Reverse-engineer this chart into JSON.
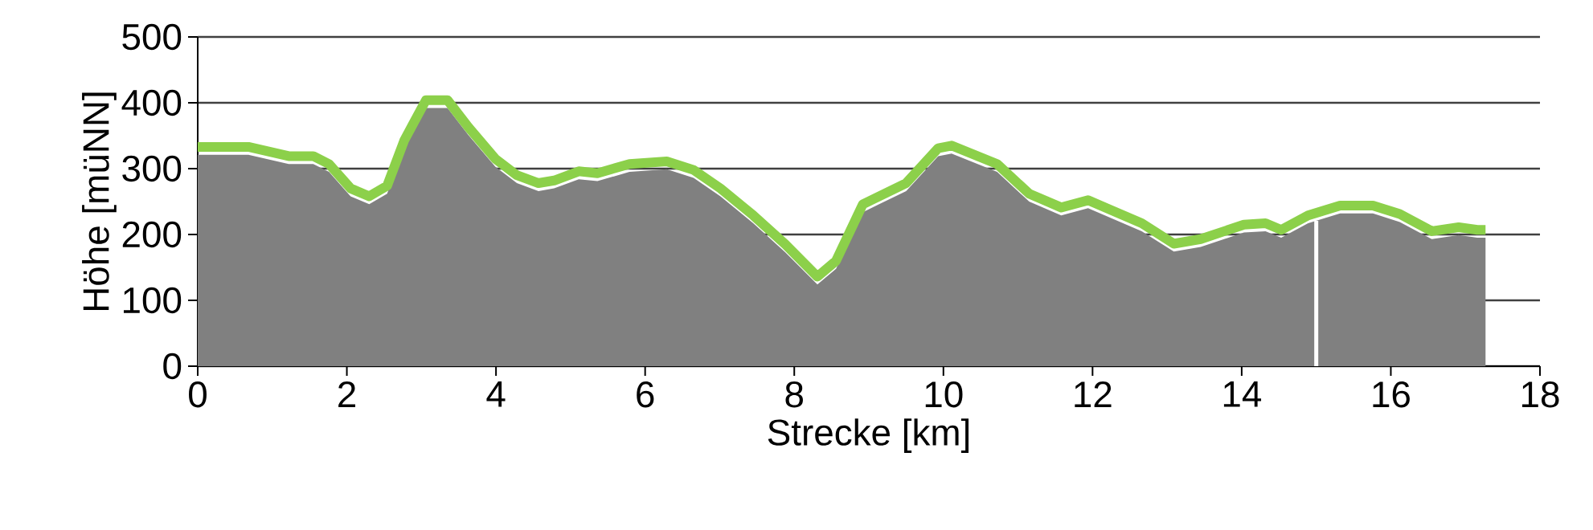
{
  "chart_data": {
    "type": "line",
    "xlabel": "Strecke [km]",
    "ylabel": "Höhe [müNN]",
    "xlim": [
      0,
      18
    ],
    "xticks": [
      0,
      2,
      4,
      6,
      8,
      10,
      12,
      14,
      16,
      18
    ],
    "ylim": [
      0,
      500
    ],
    "yticks": [
      0,
      100,
      200,
      300,
      400,
      500
    ],
    "grid": "y",
    "x": [
      0,
      0.68,
      1.22,
      1.55,
      1.76,
      2.05,
      2.3,
      2.54,
      2.77,
      3.06,
      3.35,
      3.63,
      3.99,
      4.28,
      4.57,
      4.78,
      5.11,
      5.36,
      5.79,
      6.29,
      6.65,
      7.01,
      7.45,
      7.88,
      8.31,
      8.56,
      8.92,
      9.5,
      9.93,
      10.11,
      10.72,
      11.15,
      11.58,
      11.94,
      12.66,
      13.09,
      13.45,
      14.03,
      14.32,
      14.53,
      14.89,
      15.32,
      15.76,
      16.12,
      16.55,
      16.91,
      17.16,
      17.27
    ],
    "series": [
      {
        "type": "area",
        "color": "#808080",
        "values": [
          321,
          321,
          307,
          307,
          295,
          258,
          246,
          262,
          331,
          392,
          392,
          351,
          303,
          278,
          266,
          270,
          284,
          281,
          295,
          299,
          286,
          258,
          217,
          173,
          124,
          148,
          234,
          266,
          319,
          323,
          295,
          250,
          229,
          240,
          205,
          174,
          181,
          203,
          205,
          195,
          217,
          232,
          232,
          219,
          193,
          199,
          195,
          195
        ]
      },
      {
        "color": "#8cd04a",
        "values": [
          333,
          333,
          319,
          319,
          307,
          270,
          258,
          274,
          343,
          404,
          404,
          363,
          315,
          290,
          278,
          282,
          296,
          293,
          307,
          311,
          298,
          270,
          229,
          185,
          136,
          160,
          246,
          278,
          331,
          335,
          307,
          262,
          241,
          252,
          217,
          186,
          193,
          215,
          217,
          207,
          229,
          244,
          244,
          231,
          205,
          211,
          207,
          207
        ]
      }
    ],
    "ref_lines": [
      {
        "axis": "x",
        "value": 15,
        "color": "#ffffff"
      }
    ]
  }
}
